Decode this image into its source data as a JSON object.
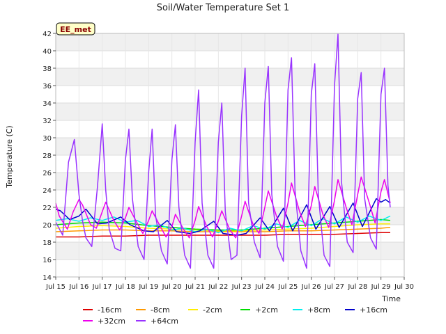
{
  "chart_data": {
    "type": "line",
    "title": "Soil/Water Temperature Set 1",
    "xlabel": "Time",
    "ylabel": "Temperature (C)",
    "badge": "EE_met",
    "xlim": [
      15,
      30
    ],
    "ylim": [
      14,
      42
    ],
    "x_ticks": [
      15,
      16,
      17,
      18,
      19,
      20,
      21,
      22,
      23,
      24,
      25,
      26,
      27,
      28,
      29,
      30
    ],
    "x_tick_labels": [
      "Jul 15",
      "Jul 16",
      "Jul 17",
      "Jul 18",
      "Jul 19",
      "Jul 20",
      "Jul 21",
      "Jul 22",
      "Jul 23",
      "Jul 24",
      "Jul 25",
      "Jul 26",
      "Jul 27",
      "Jul 28",
      "Jul 29",
      "Jul 30"
    ],
    "y_ticks": [
      14,
      16,
      18,
      20,
      22,
      24,
      26,
      28,
      30,
      32,
      34,
      36,
      38,
      40,
      42
    ],
    "grid": true,
    "legend_position": "bottom",
    "series": [
      {
        "name": "-16cm",
        "color": "#dd0000",
        "x": [
          15.0,
          15.5,
          16.0,
          17.0,
          18.0,
          19.0,
          20.0,
          21.0,
          22.0,
          23.0,
          24.0,
          25.0,
          26.0,
          27.0,
          28.0,
          29.0,
          29.4
        ],
        "y": [
          18.6,
          18.6,
          18.6,
          18.7,
          18.7,
          18.8,
          18.8,
          18.8,
          18.8,
          18.8,
          18.8,
          18.9,
          18.9,
          18.9,
          19.0,
          19.1,
          19.1
        ]
      },
      {
        "name": "-8cm",
        "color": "#ff9900",
        "x": [
          15.0,
          16.0,
          17.0,
          18.0,
          19.0,
          20.0,
          21.0,
          22.0,
          23.0,
          24.0,
          25.0,
          26.0,
          27.0,
          28.0,
          29.0,
          29.4
        ],
        "y": [
          19.2,
          19.3,
          19.4,
          19.4,
          19.3,
          19.3,
          19.2,
          19.2,
          19.2,
          19.2,
          19.3,
          19.3,
          19.4,
          19.5,
          19.6,
          19.7
        ]
      },
      {
        "name": "-2cm",
        "color": "#ffee00",
        "x": [
          15.0,
          16.0,
          17.0,
          18.0,
          19.0,
          20.0,
          21.0,
          22.0,
          23.0,
          24.0,
          25.0,
          26.0,
          27.0,
          28.0,
          29.0,
          29.4
        ],
        "y": [
          19.6,
          19.8,
          19.9,
          19.8,
          19.6,
          19.5,
          19.4,
          19.3,
          19.3,
          19.4,
          19.5,
          19.6,
          19.8,
          20.0,
          20.1,
          20.1
        ]
      },
      {
        "name": "+2cm",
        "color": "#00dd00",
        "x": [
          15.0,
          16.0,
          17.0,
          18.0,
          19.0,
          20.0,
          21.0,
          22.0,
          23.0,
          24.0,
          25.0,
          26.0,
          27.0,
          28.0,
          29.0,
          29.4
        ],
        "y": [
          20.0,
          20.2,
          20.3,
          20.2,
          19.9,
          19.7,
          19.5,
          19.4,
          19.4,
          19.6,
          19.8,
          20.0,
          20.2,
          20.4,
          20.6,
          20.5
        ]
      },
      {
        "name": "+8cm",
        "color": "#00eeee",
        "x": [
          15.0,
          15.5,
          16.0,
          16.5,
          17.0,
          17.5,
          18.0,
          18.5,
          19.0,
          19.5,
          20.0,
          20.5,
          21.0,
          21.5,
          22.0,
          22.5,
          23.0,
          23.5,
          24.0,
          24.5,
          25.0,
          25.5,
          26.0,
          26.5,
          27.0,
          27.5,
          28.0,
          28.5,
          29.0,
          29.4
        ],
        "y": [
          20.5,
          20.7,
          20.4,
          20.8,
          20.5,
          20.9,
          20.3,
          20.5,
          19.8,
          20.0,
          19.4,
          19.6,
          19.2,
          19.5,
          19.1,
          19.6,
          19.3,
          19.9,
          19.5,
          20.1,
          19.7,
          20.5,
          19.9,
          20.7,
          20.1,
          20.9,
          20.3,
          21.0,
          20.5,
          21.0
        ]
      },
      {
        "name": "+16cm",
        "color": "#0000cc",
        "x": [
          15.0,
          15.2,
          15.6,
          16.0,
          16.3,
          16.8,
          17.2,
          17.8,
          18.2,
          18.8,
          19.2,
          19.8,
          20.2,
          20.8,
          21.2,
          21.8,
          22.2,
          22.8,
          23.2,
          23.8,
          24.2,
          24.8,
          25.2,
          25.8,
          26.2,
          26.8,
          27.2,
          27.8,
          28.2,
          28.8,
          29.0,
          29.2,
          29.4
        ],
        "y": [
          21.8,
          21.6,
          20.6,
          21.0,
          21.8,
          20.1,
          20.2,
          20.9,
          20.0,
          19.3,
          19.2,
          20.5,
          19.2,
          19.0,
          19.3,
          20.4,
          19.0,
          18.8,
          19.0,
          20.8,
          19.3,
          21.9,
          19.3,
          22.3,
          19.5,
          22.1,
          19.7,
          22.5,
          19.8,
          23.0,
          22.6,
          22.9,
          22.5
        ]
      },
      {
        "name": "+32cm",
        "color": "#ee00ee",
        "x": [
          15.0,
          15.15,
          15.5,
          15.75,
          16.0,
          16.15,
          16.5,
          16.75,
          17.0,
          17.15,
          17.5,
          17.75,
          18.0,
          18.15,
          18.5,
          18.75,
          19.0,
          19.15,
          19.5,
          19.75,
          20.0,
          20.15,
          20.5,
          20.75,
          21.0,
          21.15,
          21.5,
          21.75,
          22.0,
          22.15,
          22.5,
          22.75,
          23.0,
          23.15,
          23.5,
          23.75,
          24.0,
          24.15,
          24.5,
          24.75,
          25.0,
          25.15,
          25.5,
          25.75,
          26.0,
          26.15,
          26.5,
          26.75,
          27.0,
          27.15,
          27.5,
          27.75,
          28.0,
          28.15,
          28.5,
          28.75,
          29.0,
          29.15,
          29.4
        ],
        "y": [
          22.5,
          21.0,
          19.5,
          21.5,
          22.9,
          22.3,
          20.0,
          19.6,
          21.5,
          22.6,
          20.5,
          19.4,
          20.8,
          22.0,
          20.2,
          19.0,
          20.5,
          21.6,
          19.8,
          18.6,
          19.8,
          21.2,
          19.5,
          18.5,
          20.5,
          22.1,
          19.8,
          18.6,
          20.4,
          21.6,
          19.4,
          18.5,
          21.0,
          22.7,
          20.0,
          19.0,
          22.0,
          23.9,
          21.0,
          19.5,
          22.5,
          24.8,
          21.5,
          19.8,
          22.2,
          24.4,
          21.2,
          19.7,
          22.8,
          25.2,
          22.0,
          20.0,
          23.5,
          25.5,
          22.5,
          20.2,
          23.8,
          25.2,
          22.5
        ]
      },
      {
        "name": "+64cm",
        "color": "#9933ff",
        "x": [
          15.0,
          15.3,
          15.55,
          15.8,
          16.0,
          16.15,
          16.3,
          16.55,
          16.8,
          17.0,
          17.15,
          17.3,
          17.55,
          17.8,
          18.0,
          18.15,
          18.3,
          18.55,
          18.8,
          19.0,
          19.15,
          19.3,
          19.55,
          19.8,
          20.0,
          20.15,
          20.3,
          20.55,
          20.8,
          21.0,
          21.15,
          21.3,
          21.55,
          21.8,
          22.0,
          22.15,
          22.3,
          22.55,
          22.8,
          23.0,
          23.15,
          23.3,
          23.55,
          23.8,
          24.0,
          24.15,
          24.3,
          24.55,
          24.8,
          25.0,
          25.15,
          25.3,
          25.55,
          25.8,
          26.0,
          26.15,
          26.3,
          26.55,
          26.8,
          27.0,
          27.15,
          27.3,
          27.55,
          27.8,
          28.0,
          28.15,
          28.3,
          28.55,
          28.8,
          29.0,
          29.15,
          29.3,
          29.4
        ],
        "y": [
          20.3,
          18.8,
          27.2,
          29.8,
          23.5,
          20.5,
          18.5,
          17.5,
          24.5,
          31.6,
          24.0,
          19.5,
          17.3,
          17.0,
          27.5,
          31.0,
          23.0,
          17.5,
          16.0,
          26.0,
          31.0,
          21.0,
          17.0,
          15.5,
          27.5,
          31.5,
          22.0,
          16.5,
          15.0,
          29.5,
          35.5,
          22.5,
          16.5,
          15.0,
          29.5,
          34.0,
          21.5,
          16.0,
          16.5,
          32.5,
          38.0,
          22.5,
          18.0,
          16.2,
          34.0,
          38.2,
          23.5,
          17.5,
          15.8,
          35.5,
          39.2,
          24.0,
          17.0,
          15.0,
          35.0,
          38.5,
          23.5,
          16.5,
          15.2,
          36.0,
          41.9,
          25.0,
          18.0,
          16.8,
          34.5,
          37.5,
          23.0,
          18.5,
          17.2,
          35.0,
          38.0,
          24.5,
          22.0
        ]
      }
    ]
  }
}
